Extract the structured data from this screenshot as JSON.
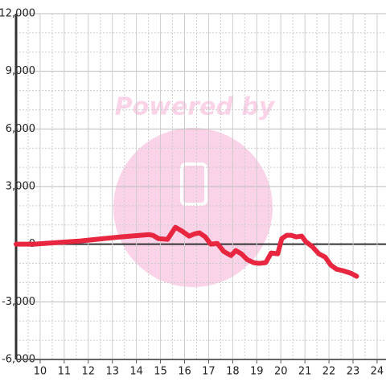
{
  "chart_data": {
    "type": "line",
    "watermark": "Powered by",
    "x": [
      9,
      9.74,
      11.68,
      13.35,
      14.52,
      14.69,
      14.92,
      15.29,
      15.62,
      15.86,
      16.19,
      16.42,
      16.62,
      16.86,
      17.09,
      17.36,
      17.63,
      17.93,
      18.13,
      18.36,
      18.6,
      18.87,
      19.1,
      19.37,
      19.6,
      19.87,
      20.04,
      20.24,
      20.44,
      20.64,
      20.87,
      21.04,
      21.31,
      21.58,
      21.84,
      22.08,
      22.31,
      22.58,
      22.91,
      23.15
    ],
    "series": [
      {
        "color": "#e8263f",
        "values": [
          0,
          0,
          170,
          380,
          500,
          460,
          290,
          250,
          880,
          710,
          420,
          540,
          590,
          380,
          0,
          40,
          -380,
          -590,
          -330,
          -500,
          -800,
          -960,
          -1000,
          -960,
          -460,
          -500,
          290,
          460,
          460,
          380,
          420,
          130,
          -130,
          -500,
          -670,
          -1090,
          -1300,
          -1380,
          -1510,
          -1670
        ]
      }
    ],
    "xlim": [
      9,
      24.37
    ],
    "xticks": [
      10,
      11,
      12,
      13,
      14,
      15,
      16,
      17,
      18,
      19,
      20,
      21,
      22,
      23,
      24
    ],
    "ylim": [
      -6000,
      12000
    ],
    "yticks": [
      {
        "value": -6000,
        "label": "-6,000"
      },
      {
        "value": -3000,
        "label": "-3,000"
      },
      0,
      {
        "value": 3000,
        "label": "3,000"
      },
      {
        "value": 6000,
        "label": "6,000"
      },
      {
        "value": 9000,
        "label": "9,000"
      },
      {
        "value": 12000,
        "label": "12,000"
      }
    ],
    "grid": true
  }
}
